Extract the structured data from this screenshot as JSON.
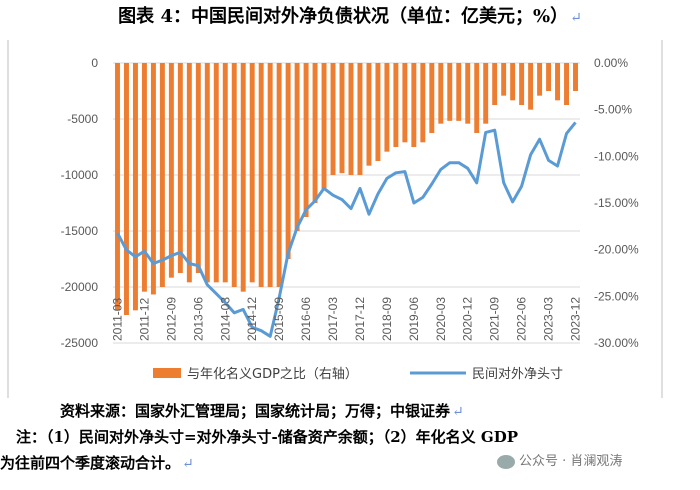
{
  "figure_title": "图表 4：中国民间对外净负债状况（单位：亿美元；%）",
  "notes": {
    "source": "资料来源：国家外汇管理局；国家统计局；万得；中银证券",
    "note_line1": "注：（1）民间对外净头寸=对外净头寸-储备资产余额；（2）年化名义 GDP",
    "note_line2": "为往前四个季度滚动合计。"
  },
  "return_mark": "↵",
  "watermark": "公众号 · 肖澜观涛",
  "colors": {
    "bar": "#ed7d31",
    "line": "#5b9bd5",
    "grid": "#d9d9d9",
    "axis_text": "#595959"
  },
  "chart_data": {
    "type": "bar+line",
    "categories": [
      "2011-03",
      "2011-06",
      "2011-09",
      "2011-12",
      "2012-03",
      "2012-06",
      "2012-09",
      "2012-12",
      "2013-03",
      "2013-06",
      "2013-09",
      "2013-12",
      "2014-03",
      "2014-06",
      "2014-09",
      "2014-12",
      "2015-03",
      "2015-06",
      "2015-09",
      "2015-12",
      "2016-03",
      "2016-06",
      "2016-09",
      "2016-12",
      "2017-03",
      "2017-06",
      "2017-09",
      "2017-12",
      "2018-03",
      "2018-06",
      "2018-09",
      "2018-12",
      "2019-03",
      "2019-06",
      "2019-09",
      "2019-12",
      "2020-03",
      "2020-06",
      "2020-09",
      "2020-12",
      "2021-03",
      "2021-06",
      "2021-09",
      "2021-12",
      "2022-03",
      "2022-06",
      "2022-09",
      "2022-12",
      "2023-03",
      "2023-06",
      "2023-09",
      "2023-12"
    ],
    "tick_labels": [
      "2011-03",
      "2011-12",
      "2012-09",
      "2013-06",
      "2014-03",
      "2014-12",
      "2015-09",
      "2016-06",
      "2017-03",
      "2017-12",
      "2018-09",
      "2019-06",
      "2020-03",
      "2020-12",
      "2021-09",
      "2022-06",
      "2023-03",
      "2023-12"
    ],
    "series": [
      {
        "name": "与年化名义GDP之比（右轴）",
        "axis": "right",
        "type": "bar",
        "values": [
          -26.5,
          -27.0,
          -26.5,
          -24.5,
          -24.8,
          -24.0,
          -23.0,
          -22.5,
          -23.5,
          -22.5,
          -23.5,
          -23.5,
          -23.5,
          -24.0,
          -24.5,
          -23.5,
          -24.0,
          -24.0,
          -24.0,
          -21.0,
          -18.0,
          -16.5,
          -15.0,
          -13.5,
          -12.0,
          -11.8,
          -12.0,
          -12.0,
          -11.0,
          -10.5,
          -9.5,
          -9.0,
          -8.5,
          -9.0,
          -8.5,
          -7.5,
          -6.5,
          -6.2,
          -6.2,
          -6.5,
          -7.5,
          -6.5,
          -4.5,
          -3.5,
          -4.0,
          -4.5,
          -5.0,
          -3.5,
          -3.0,
          -4.0,
          -4.5,
          -3.0
        ]
      },
      {
        "name": "民间对外净头寸",
        "axis": "left",
        "type": "line",
        "values": [
          -15200,
          -16700,
          -17300,
          -16800,
          -17900,
          -17600,
          -17200,
          -16900,
          -17900,
          -18100,
          -19800,
          -20600,
          -21400,
          -22300,
          -22000,
          -23600,
          -23900,
          -24400,
          -21000,
          -17000,
          -14700,
          -13100,
          -12300,
          -11200,
          -11800,
          -12200,
          -13000,
          -11200,
          -13500,
          -11700,
          -10300,
          -9800,
          -9700,
          -12500,
          -12000,
          -10800,
          -9500,
          -8900,
          -8900,
          -9400,
          -10700,
          -6200,
          -6000,
          -10700,
          -12400,
          -11000,
          -8200,
          -6800,
          -8700,
          -9200,
          -6300,
          -5300
        ]
      }
    ],
    "left_axis": {
      "min": -25000,
      "max": 0,
      "ticks": [
        "-25000",
        "-20000",
        "-15000",
        "-10000",
        "-5000",
        "0"
      ]
    },
    "right_axis": {
      "min": -30,
      "max": 0,
      "ticks": [
        "-30.00%",
        "-25.00%",
        "-20.00%",
        "-15.00%",
        "-10.00%",
        "-5.00%",
        "0.00%"
      ]
    },
    "legend": [
      "与年化名义GDP之比（右轴）",
      "民间对外净头寸"
    ],
    "legend_position": "bottom"
  }
}
